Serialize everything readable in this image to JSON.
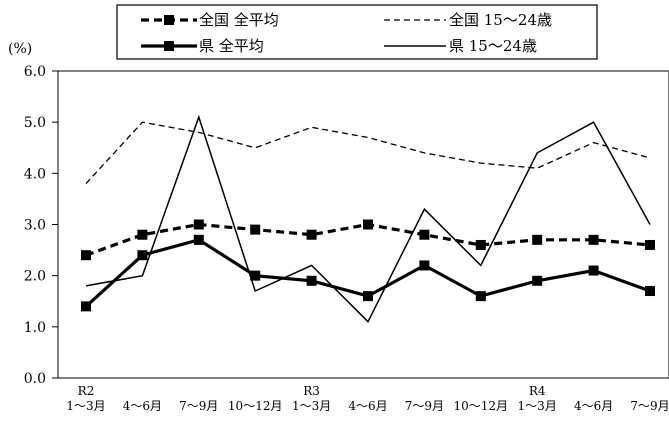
{
  "chart_data": {
    "type": "line",
    "unit_label": "(%)",
    "ylim": [
      0,
      6
    ],
    "yticks": [
      "0.0",
      "1.0",
      "2.0",
      "3.0",
      "4.0",
      "5.0",
      "6.0"
    ],
    "year_labels": [
      {
        "index": 0,
        "label": "R2"
      },
      {
        "index": 4,
        "label": "R3"
      },
      {
        "index": 8,
        "label": "R4"
      }
    ],
    "categories": [
      "1～3月",
      "4～6月",
      "7～9月",
      "10～12月",
      "1～3月",
      "4～6月",
      "7～9月",
      "10～12月",
      "1～3月",
      "4～6月",
      "7～9月"
    ],
    "grid": false,
    "legend_position": "top",
    "series": [
      {
        "name": "全国 全平均",
        "style": "dashed-marker",
        "color": "#000000",
        "values": [
          2.4,
          2.8,
          3.0,
          2.9,
          2.8,
          3.0,
          2.8,
          2.6,
          2.7,
          2.7,
          2.6
        ]
      },
      {
        "name": "全国 15～24歳",
        "style": "dashed",
        "color": "#000000",
        "values": [
          3.8,
          5.0,
          4.8,
          4.5,
          4.9,
          4.7,
          4.4,
          4.2,
          4.1,
          4.6,
          4.3
        ]
      },
      {
        "name": "県 全平均",
        "style": "solid-marker",
        "color": "#000000",
        "values": [
          1.4,
          2.4,
          2.7,
          2.0,
          1.9,
          1.6,
          2.2,
          1.6,
          1.9,
          2.1,
          1.7
        ]
      },
      {
        "name": "県 15～24歳",
        "style": "solid",
        "color": "#000000",
        "values": [
          1.8,
          2.0,
          5.1,
          1.7,
          2.2,
          1.1,
          3.3,
          2.2,
          4.4,
          5.0,
          3.0
        ]
      }
    ]
  }
}
